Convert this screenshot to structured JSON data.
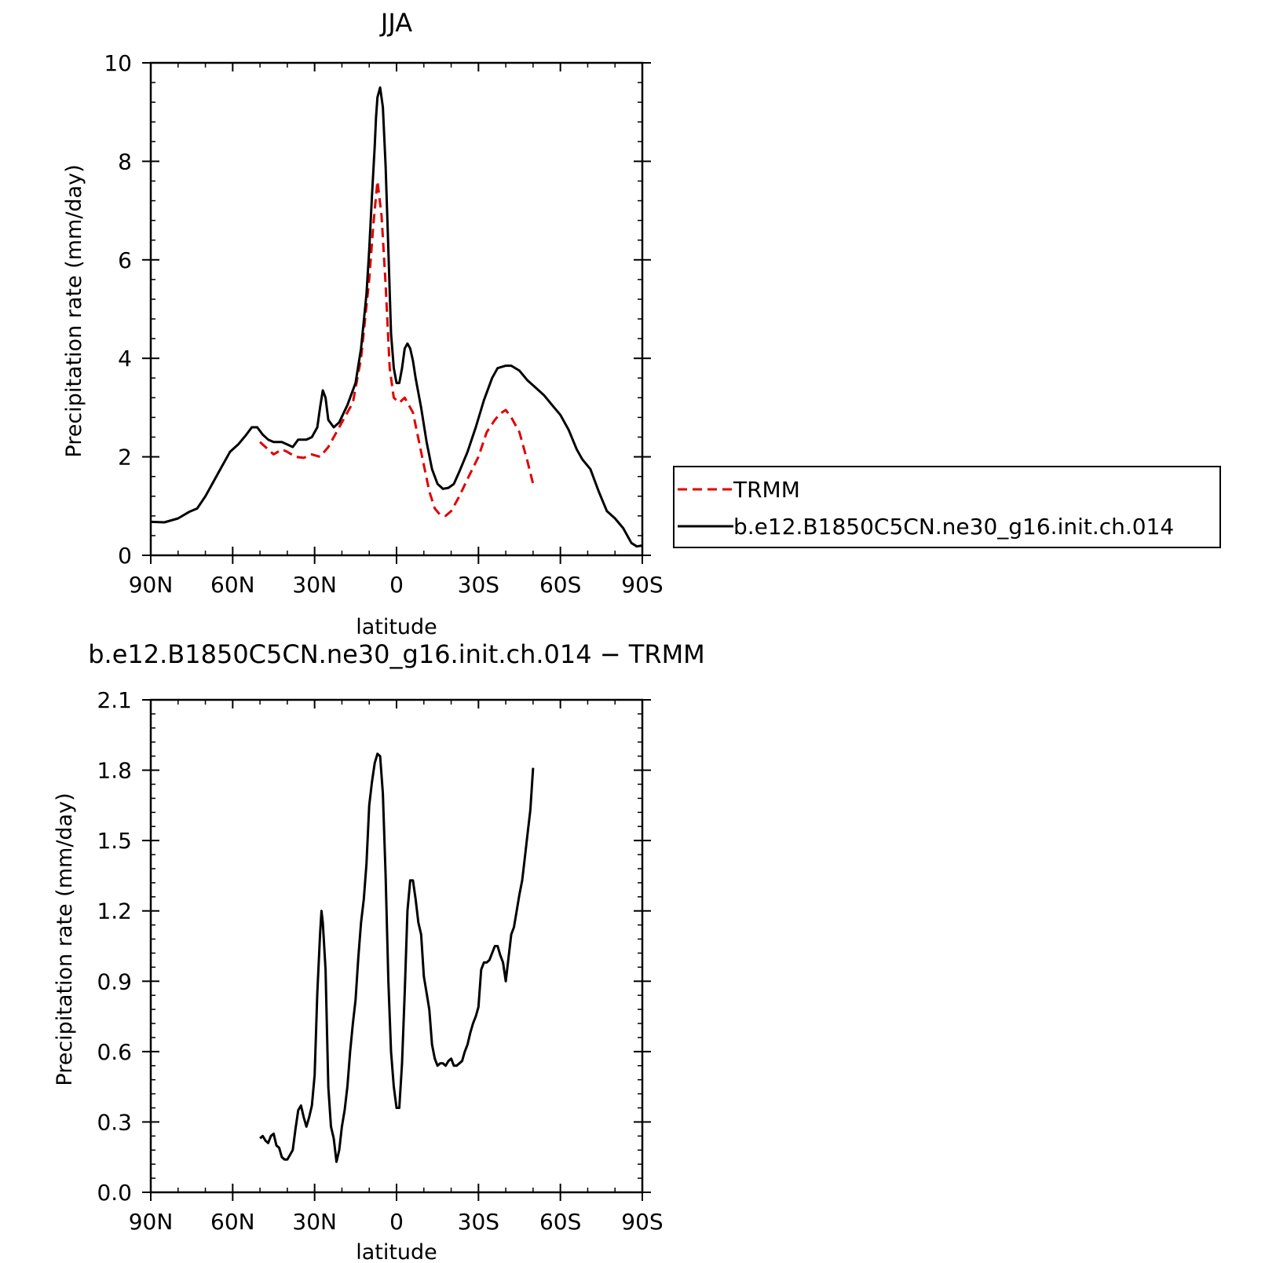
{
  "chart_data": [
    {
      "type": "line",
      "title": "JJA",
      "xlabel": "latitude",
      "ylabel": "Precipitation rate (mm/day)",
      "xlim": [
        90,
        -90
      ],
      "ylim": [
        0,
        10
      ],
      "x_ticks": [
        {
          "value": 90,
          "label": "90N"
        },
        {
          "value": 60,
          "label": "60N"
        },
        {
          "value": 30,
          "label": "30N"
        },
        {
          "value": 0,
          "label": "0"
        },
        {
          "value": -30,
          "label": "30S"
        },
        {
          "value": -60,
          "label": "60S"
        },
        {
          "value": -90,
          "label": "90S"
        }
      ],
      "y_ticks": [
        {
          "value": 0,
          "label": "0"
        },
        {
          "value": 2,
          "label": "2"
        },
        {
          "value": 4,
          "label": "4"
        },
        {
          "value": 6,
          "label": "6"
        },
        {
          "value": 8,
          "label": "8"
        },
        {
          "value": 10,
          "label": "10"
        }
      ],
      "legend_position": "right",
      "series": [
        {
          "name": "TRMM",
          "color": "#e00000",
          "dash": "dashed",
          "x": [
            50,
            48,
            45,
            42,
            40,
            37,
            34,
            31,
            28,
            25,
            22,
            19,
            16,
            13,
            10,
            8.5,
            7,
            5.5,
            4,
            2.5,
            1,
            -1,
            -3,
            -6,
            -9,
            -12,
            -14,
            -16,
            -18,
            -20,
            -23,
            -26,
            -30,
            -33,
            -36,
            -38,
            -40,
            -42,
            -45,
            -48,
            -50
          ],
          "y": [
            2.3,
            2.2,
            2.05,
            2.15,
            2.1,
            2.0,
            1.98,
            2.05,
            2.0,
            2.2,
            2.5,
            2.8,
            3.1,
            4.0,
            5.6,
            6.7,
            7.6,
            6.9,
            5.5,
            3.8,
            3.2,
            3.1,
            3.2,
            2.9,
            2.1,
            1.3,
            0.95,
            0.82,
            0.8,
            0.9,
            1.2,
            1.55,
            2.0,
            2.5,
            2.75,
            2.88,
            2.95,
            2.8,
            2.5,
            1.9,
            1.45
          ]
        },
        {
          "name": "b.e12.B1850C5CN.ne30_g16.init.ch.014",
          "color": "#000000",
          "dash": "solid",
          "x": [
            90,
            85,
            80,
            76,
            73,
            70,
            67,
            64,
            61,
            58,
            55,
            53,
            51,
            49,
            47,
            45,
            42,
            40,
            38,
            36,
            33,
            31,
            29,
            28,
            27,
            26,
            25,
            23,
            21,
            18,
            15,
            13,
            11,
            10,
            9,
            8,
            7.5,
            7,
            6,
            5,
            4,
            3,
            2,
            1,
            0,
            -1,
            -2,
            -3,
            -4,
            -5,
            -6,
            -7,
            -9,
            -11,
            -13,
            -15,
            -17,
            -19,
            -21,
            -23,
            -26,
            -29,
            -32,
            -35,
            -37,
            -40,
            -42,
            -45,
            -48,
            -51,
            -54,
            -57,
            -60,
            -63,
            -66,
            -68,
            -71,
            -74,
            -77,
            -80,
            -83,
            -86,
            -88,
            -90
          ],
          "y": [
            0.68,
            0.67,
            0.75,
            0.88,
            0.95,
            1.2,
            1.5,
            1.8,
            2.1,
            2.25,
            2.45,
            2.6,
            2.6,
            2.45,
            2.35,
            2.3,
            2.3,
            2.25,
            2.2,
            2.35,
            2.35,
            2.4,
            2.6,
            3.0,
            3.35,
            3.2,
            2.75,
            2.6,
            2.7,
            3.05,
            3.5,
            4.2,
            5.3,
            6.2,
            7.3,
            8.3,
            8.9,
            9.3,
            9.5,
            9.1,
            7.9,
            6.2,
            4.5,
            3.8,
            3.5,
            3.5,
            3.8,
            4.2,
            4.3,
            4.2,
            3.95,
            3.6,
            3.0,
            2.3,
            1.75,
            1.45,
            1.35,
            1.37,
            1.45,
            1.7,
            2.1,
            2.6,
            3.15,
            3.6,
            3.8,
            3.85,
            3.85,
            3.75,
            3.55,
            3.4,
            3.25,
            3.05,
            2.85,
            2.55,
            2.15,
            1.95,
            1.75,
            1.3,
            0.9,
            0.75,
            0.55,
            0.25,
            0.18,
            0.2
          ]
        }
      ]
    },
    {
      "type": "line",
      "title": "b.e12.B1850C5CN.ne30_g16.init.ch.014 − TRMM",
      "xlabel": "latitude",
      "ylabel": "Precipitation rate (mm/day)",
      "xlim": [
        90,
        -90
      ],
      "ylim": [
        0,
        2.1
      ],
      "x_ticks": [
        {
          "value": 90,
          "label": "90N"
        },
        {
          "value": 60,
          "label": "60N"
        },
        {
          "value": 30,
          "label": "30N"
        },
        {
          "value": 0,
          "label": "0"
        },
        {
          "value": -30,
          "label": "30S"
        },
        {
          "value": -60,
          "label": "60S"
        },
        {
          "value": -90,
          "label": "90S"
        }
      ],
      "y_ticks": [
        {
          "value": 0,
          "label": "0.0"
        },
        {
          "value": 0.3,
          "label": "0.3"
        },
        {
          "value": 0.6,
          "label": "0.6"
        },
        {
          "value": 0.9,
          "label": "0.9"
        },
        {
          "value": 1.2,
          "label": "1.2"
        },
        {
          "value": 1.5,
          "label": "1.5"
        },
        {
          "value": 1.8,
          "label": "1.8"
        },
        {
          "value": 2.1,
          "label": "2.1"
        }
      ],
      "series": [
        {
          "color": "#000000",
          "dash": "solid",
          "x": [
            50,
            49,
            48,
            47,
            46,
            45,
            44,
            43,
            42,
            41,
            40,
            39,
            38,
            37,
            36,
            35,
            34,
            33,
            32,
            31,
            30,
            29,
            28,
            27.5,
            27,
            26,
            25,
            24,
            23,
            22,
            21,
            20,
            19,
            18,
            17,
            16,
            15,
            14,
            13,
            12,
            11,
            10,
            9,
            8,
            7,
            6,
            5,
            4,
            3,
            2,
            1,
            0,
            -1,
            -2,
            -3,
            -4,
            -5,
            -6,
            -7,
            -8,
            -9,
            -10,
            -11,
            -12,
            -13,
            -14,
            -15,
            -16,
            -17,
            -18,
            -19,
            -20,
            -21,
            -22,
            -23,
            -24,
            -25,
            -26,
            -27,
            -28,
            -29,
            -30,
            -31,
            -32,
            -33,
            -34,
            -35,
            -36,
            -37,
            -38,
            -39,
            -40,
            -41,
            -42,
            -43,
            -44,
            -45,
            -46,
            -47,
            -48,
            -49,
            -50
          ],
          "y": [
            0.23,
            0.24,
            0.22,
            0.21,
            0.24,
            0.25,
            0.2,
            0.19,
            0.15,
            0.14,
            0.14,
            0.16,
            0.18,
            0.27,
            0.35,
            0.37,
            0.32,
            0.28,
            0.32,
            0.37,
            0.5,
            0.85,
            1.1,
            1.2,
            1.15,
            0.95,
            0.45,
            0.28,
            0.23,
            0.13,
            0.18,
            0.28,
            0.35,
            0.45,
            0.6,
            0.72,
            0.82,
            1.0,
            1.15,
            1.25,
            1.4,
            1.65,
            1.75,
            1.83,
            1.87,
            1.86,
            1.7,
            1.35,
            0.9,
            0.6,
            0.45,
            0.36,
            0.36,
            0.55,
            0.85,
            1.2,
            1.33,
            1.33,
            1.25,
            1.15,
            1.1,
            0.92,
            0.85,
            0.78,
            0.63,
            0.57,
            0.54,
            0.55,
            0.55,
            0.54,
            0.56,
            0.57,
            0.54,
            0.54,
            0.55,
            0.56,
            0.6,
            0.63,
            0.68,
            0.72,
            0.75,
            0.79,
            0.95,
            0.98,
            0.98,
            0.99,
            1.02,
            1.05,
            1.05,
            1.01,
            0.98,
            0.9,
            1.0,
            1.1,
            1.13,
            1.2,
            1.27,
            1.33,
            1.43,
            1.53,
            1.63,
            1.81
          ]
        }
      ]
    }
  ]
}
